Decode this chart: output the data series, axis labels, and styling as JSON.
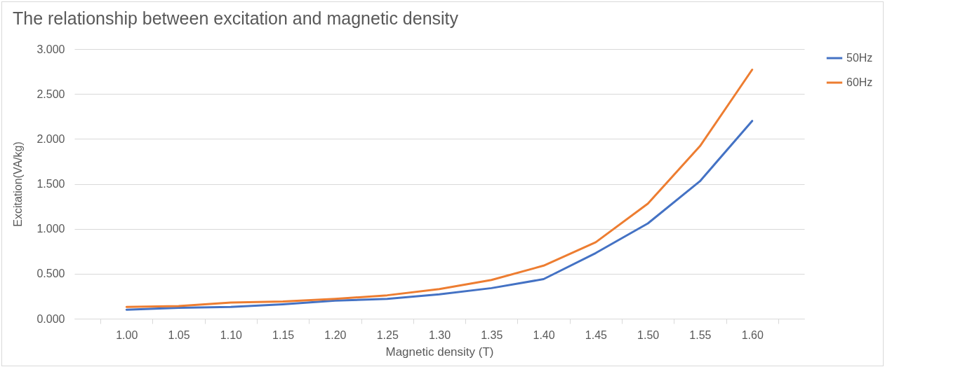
{
  "chart_data": {
    "type": "line",
    "title": "The relationship between excitation and magnetic density",
    "xlabel": "Magnetic density (T)",
    "ylabel": "Excitation(VA/kg)",
    "categories": [
      "1.00",
      "1.05",
      "1.10",
      "1.15",
      "1.20",
      "1.25",
      "1.30",
      "1.35",
      "1.40",
      "1.45",
      "1.50",
      "1.55",
      "1.60"
    ],
    "series": [
      {
        "name": "50Hz",
        "color": "#4472c4",
        "values": [
          0.1,
          0.12,
          0.13,
          0.16,
          0.2,
          0.22,
          0.27,
          0.34,
          0.44,
          0.73,
          1.06,
          1.53,
          2.2
        ]
      },
      {
        "name": "60Hz",
        "color": "#ed7d31",
        "values": [
          0.13,
          0.14,
          0.18,
          0.19,
          0.22,
          0.26,
          0.33,
          0.43,
          0.59,
          0.85,
          1.28,
          1.92,
          2.77
        ]
      }
    ],
    "ylim": [
      0,
      3
    ],
    "yticks": [
      {
        "value": 0,
        "label": "0.000"
      },
      {
        "value": 0.5,
        "label": "0.500"
      },
      {
        "value": 1,
        "label": "1.000"
      },
      {
        "value": 1.5,
        "label": "1.500"
      },
      {
        "value": 2,
        "label": "2.000"
      },
      {
        "value": 2.5,
        "label": "2.500"
      },
      {
        "value": 3,
        "label": "3.000"
      }
    ],
    "grid": "y",
    "legend": "right",
    "marker": "none",
    "line_style": "solid"
  }
}
